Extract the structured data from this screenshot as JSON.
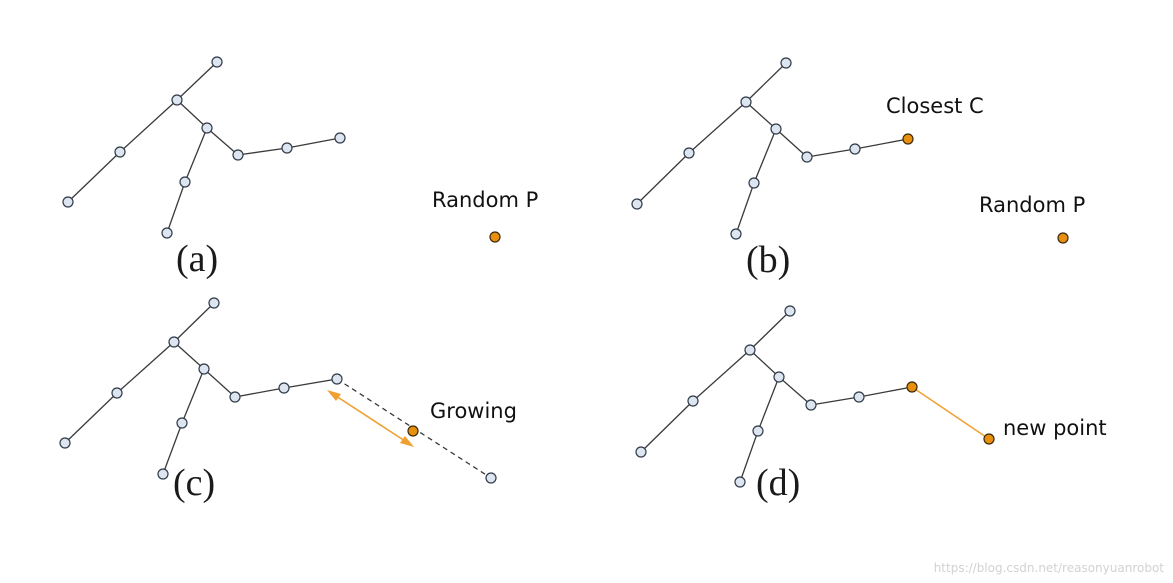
{
  "panels": [
    {
      "label": "(a)",
      "annotations": [
        "Random P"
      ]
    },
    {
      "label": "(b)",
      "annotations": [
        "Closest C",
        "Random P"
      ]
    },
    {
      "label": "(c)",
      "annotations": [
        "Growing"
      ]
    },
    {
      "label": "(d)",
      "annotations": [
        "new point"
      ]
    }
  ],
  "watermark": "https://blog.csdn.net/reasonyuanrobot",
  "colors": {
    "node_fill": "#dde6f0",
    "node_stroke": "#2f3a48",
    "edge": "#3a3a3a",
    "accent_node": "#e8900e",
    "accent_line": "#f0a030"
  }
}
